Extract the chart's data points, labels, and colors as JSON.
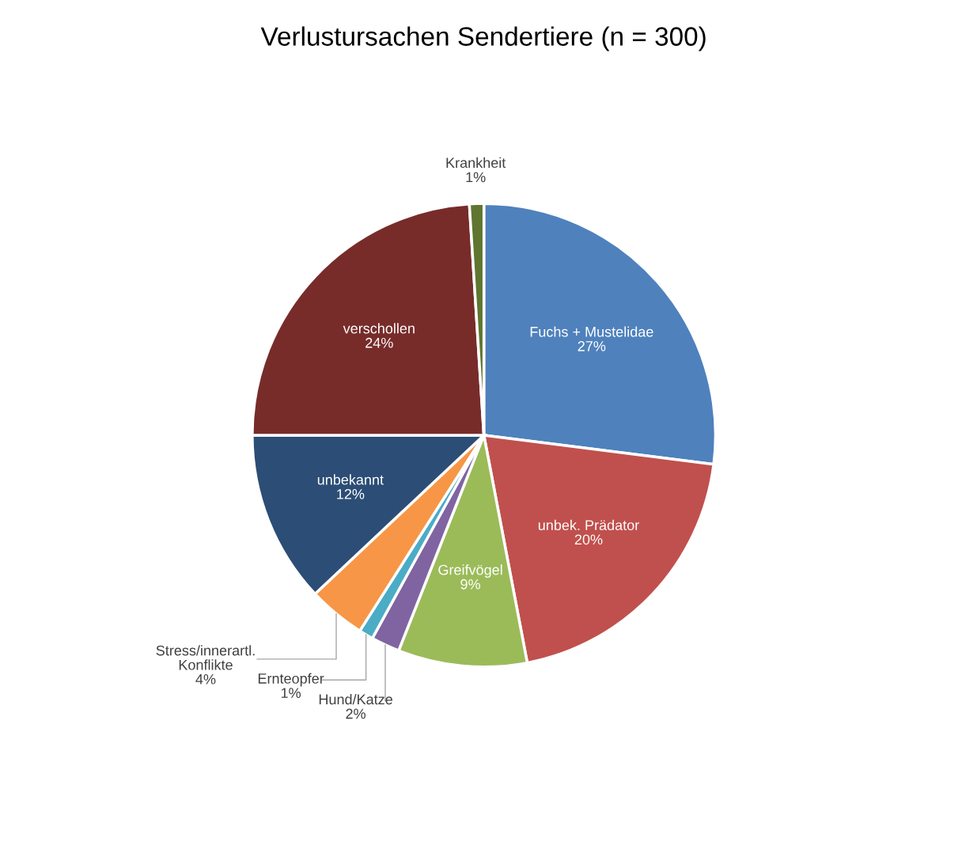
{
  "chart_data": {
    "type": "pie",
    "title": "Verlustursachen Sendertiere (n = 300)",
    "categories": [
      "Fuchs + Mustelidae",
      "unbek. Prädator",
      "Greifvögel",
      "Hund/Katze",
      "Ernteopfer",
      "Stress/innerartl.\nKonflikte",
      "unbekannt",
      "verschollen",
      "Krankheit"
    ],
    "values": [
      27,
      20,
      9,
      2,
      1,
      4,
      12,
      24,
      1
    ],
    "value_labels": [
      "27%",
      "20%",
      "9%",
      "2%",
      "1%",
      "4%",
      "12%",
      "24%",
      "1%"
    ],
    "colors": [
      "#4f81bd",
      "#c0504d",
      "#9bbb59",
      "#8064a2",
      "#4bacc6",
      "#f79646",
      "#2c4d75",
      "#772c2a",
      "#5f7530"
    ],
    "legend": false
  }
}
